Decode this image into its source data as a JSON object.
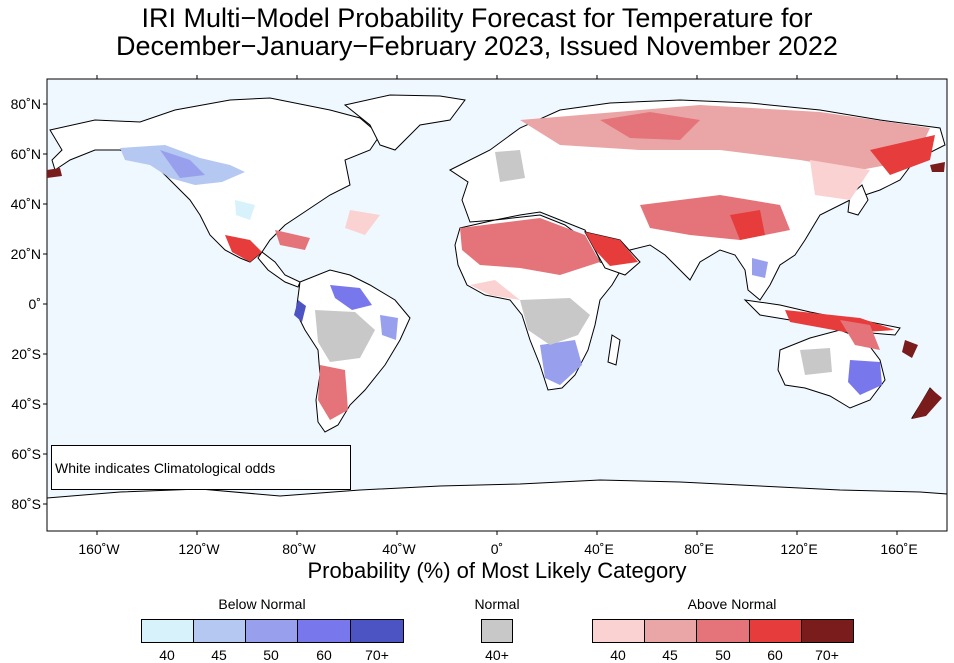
{
  "title": {
    "line1": "IRI Multi−Model Probability Forecast for Temperature for",
    "line2": "December−January−February 2023, Issued November 2022"
  },
  "map": {
    "ocean_color": "#f0f8ff",
    "land_color": "#ffffff",
    "lat_ticks": [
      "80˚N",
      "60˚N",
      "40˚N",
      "20˚N",
      "0˚",
      "20˚S",
      "40˚S",
      "60˚S",
      "80˚S"
    ],
    "lon_ticks": [
      "160˚W",
      "120˚W",
      "80˚W",
      "40˚W",
      "0˚",
      "40˚E",
      "80˚E",
      "120˚E",
      "160˚E"
    ],
    "note": "White indicates Climatological odds"
  },
  "xlabel": "Probability (%) of Most Likely Category",
  "legend": {
    "below": {
      "title": "Below Normal",
      "colors": [
        "#d7f2fa",
        "#b4c8f2",
        "#98a0ee",
        "#7878ec",
        "#4c54c4"
      ],
      "labels": [
        "40",
        "45",
        "50",
        "60",
        "70+"
      ]
    },
    "normal": {
      "title": "Normal",
      "colors": [
        "#c8c8c8"
      ],
      "labels": [
        "40+"
      ]
    },
    "above": {
      "title": "Above Normal",
      "colors": [
        "#fad2d2",
        "#eaa6a6",
        "#e4747a",
        "#e63c3c",
        "#7a1c1c"
      ],
      "labels": [
        "40",
        "45",
        "50",
        "60",
        "70+"
      ]
    }
  }
}
